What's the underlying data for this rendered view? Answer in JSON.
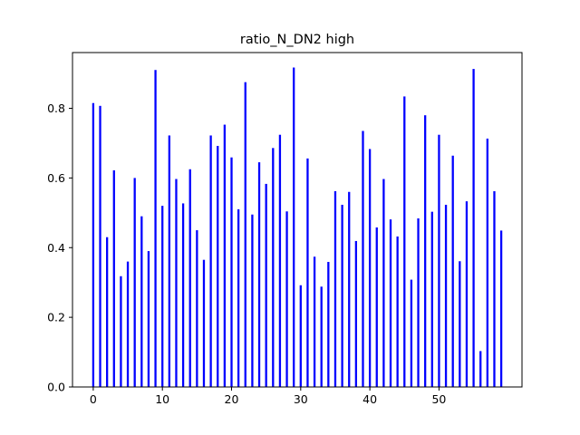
{
  "chart_data": {
    "type": "bar",
    "title": "ratio_N_DN2 high",
    "xlabel": "",
    "ylabel": "",
    "bar_color": "#0000ff",
    "xlim": [
      -3,
      62
    ],
    "ylim": [
      0,
      0.96
    ],
    "x_ticks": [
      0,
      10,
      20,
      30,
      40,
      50
    ],
    "y_ticks": [
      0.0,
      0.2,
      0.4,
      0.6,
      0.8
    ],
    "y_tick_labels": [
      "0.0",
      "0.2",
      "0.4",
      "0.6",
      "0.8"
    ],
    "x": [
      0,
      1,
      2,
      3,
      4,
      5,
      6,
      7,
      8,
      9,
      10,
      11,
      12,
      13,
      14,
      15,
      16,
      17,
      18,
      19,
      20,
      21,
      22,
      23,
      24,
      25,
      26,
      27,
      28,
      29,
      30,
      31,
      32,
      33,
      34,
      35,
      36,
      37,
      38,
      39,
      40,
      41,
      42,
      43,
      44,
      45,
      46,
      47,
      48,
      49,
      50,
      51,
      52,
      53,
      54,
      55,
      56,
      57,
      58,
      59
    ],
    "values": [
      0.815,
      0.807,
      0.43,
      0.622,
      0.318,
      0.36,
      0.6,
      0.49,
      0.39,
      0.91,
      0.52,
      0.722,
      0.597,
      0.527,
      0.625,
      0.45,
      0.365,
      0.722,
      0.692,
      0.753,
      0.659,
      0.51,
      0.875,
      0.495,
      0.645,
      0.583,
      0.686,
      0.724,
      0.504,
      0.917,
      0.292,
      0.656,
      0.374,
      0.288,
      0.359,
      0.562,
      0.523,
      0.56,
      0.419,
      0.735,
      0.683,
      0.458,
      0.597,
      0.481,
      0.432,
      0.834,
      0.308,
      0.484,
      0.78,
      0.503,
      0.724,
      0.523,
      0.664,
      0.361,
      0.533,
      0.913,
      0.103,
      0.713,
      0.562,
      0.449
    ]
  }
}
